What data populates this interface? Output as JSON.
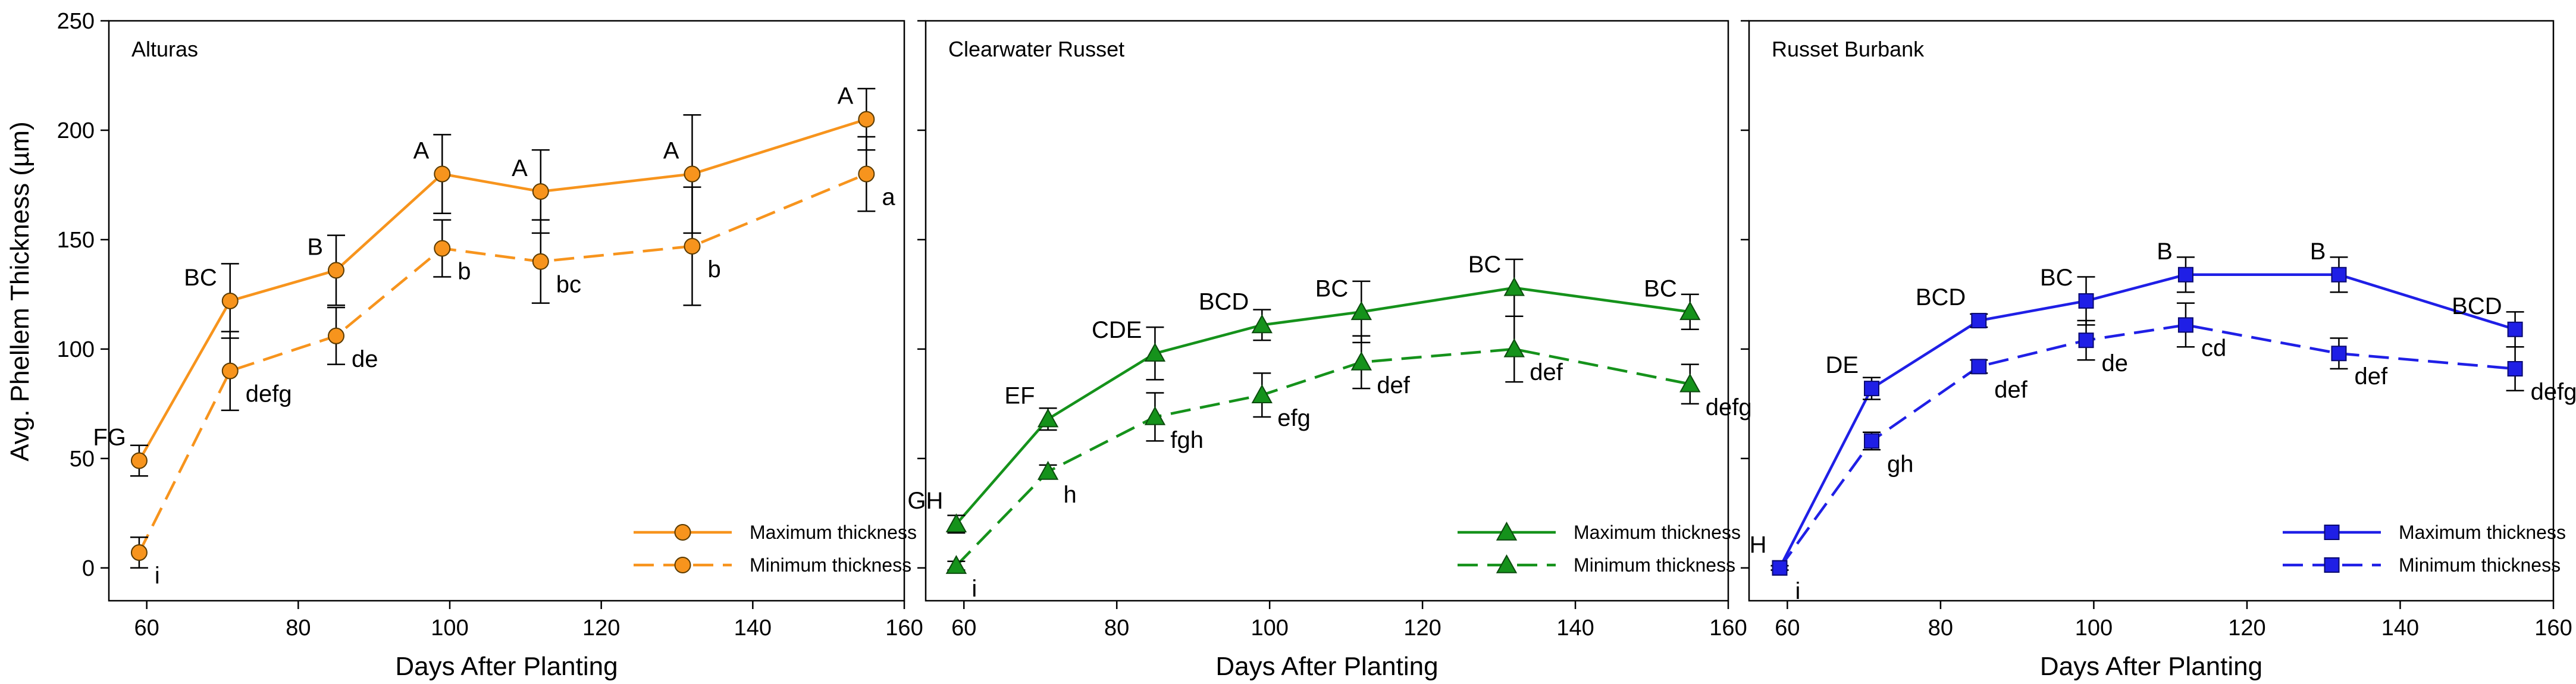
{
  "chart_data": {
    "type": "line",
    "ylabel": "Avg. Phellem Thickness (µm)",
    "xlabel": "Days After Planting",
    "xlim": [
      55,
      160
    ],
    "ylim": [
      -15,
      250
    ],
    "xticks": [
      60,
      80,
      100,
      120,
      140,
      160
    ],
    "yticks": [
      0,
      50,
      100,
      150,
      200,
      250
    ],
    "x": [
      59,
      71,
      85,
      99,
      112,
      132,
      155
    ],
    "series_names": [
      "Maximum thickness",
      "Minimum thickness"
    ],
    "panels": [
      {
        "title": "Alturas",
        "color": "#f7941d",
        "marker": "circle",
        "series": [
          {
            "name": "Maximum thickness",
            "values": [
              49,
              122,
              136,
              180,
              172,
              180,
              205
            ],
            "errors": [
              7,
              17,
              16,
              18,
              19,
              27,
              14
            ],
            "labels": [
              "FG",
              "BC",
              "B",
              "A",
              "A",
              "A",
              "A"
            ]
          },
          {
            "name": "Minimum thickness",
            "values": [
              7,
              90,
              106,
              146,
              140,
              147,
              180
            ],
            "errors": [
              7,
              18,
              13,
              13,
              19,
              27,
              17
            ],
            "labels": [
              "i",
              "defg",
              "de",
              "b",
              "bc",
              "b",
              "a"
            ]
          }
        ]
      },
      {
        "title": "Clearwater Russet",
        "color": "#15921b",
        "marker": "triangle",
        "series": [
          {
            "name": "Maximum thickness",
            "values": [
              20,
              68,
              98,
              111,
              117,
              128,
              117
            ],
            "errors": [
              4,
              5,
              12,
              7,
              14,
              13,
              8
            ],
            "labels": [
              "GH",
              "EF",
              "CDE",
              "BCD",
              "BC",
              "BC",
              "BC"
            ]
          },
          {
            "name": "Minimum thickness",
            "values": [
              1,
              44,
              69,
              79,
              94,
              100,
              84
            ],
            "errors": [
              2,
              3,
              11,
              10,
              12,
              15,
              9
            ],
            "labels": [
              "i",
              "h",
              "fgh",
              "efg",
              "def",
              "def",
              "defg"
            ]
          }
        ]
      },
      {
        "title": "Russet Burbank",
        "color": "#1f1fe6",
        "marker": "square",
        "series": [
          {
            "name": "Maximum thickness",
            "values": [
              0,
              82,
              113,
              122,
              134,
              134,
              109
            ],
            "errors": [
              1,
              5,
              3,
              11,
              8,
              8,
              8
            ],
            "labels": [
              "H",
              "DE",
              "BCD",
              "BC",
              "B",
              "B",
              "BCD"
            ]
          },
          {
            "name": "Minimum thickness",
            "values": [
              0,
              58,
              92,
              104,
              111,
              98,
              91
            ],
            "errors": [
              1,
              4,
              3,
              9,
              10,
              7,
              10
            ],
            "labels": [
              "i",
              "gh",
              "def",
              "de",
              "cd",
              "def",
              "defg"
            ]
          }
        ]
      }
    ]
  }
}
